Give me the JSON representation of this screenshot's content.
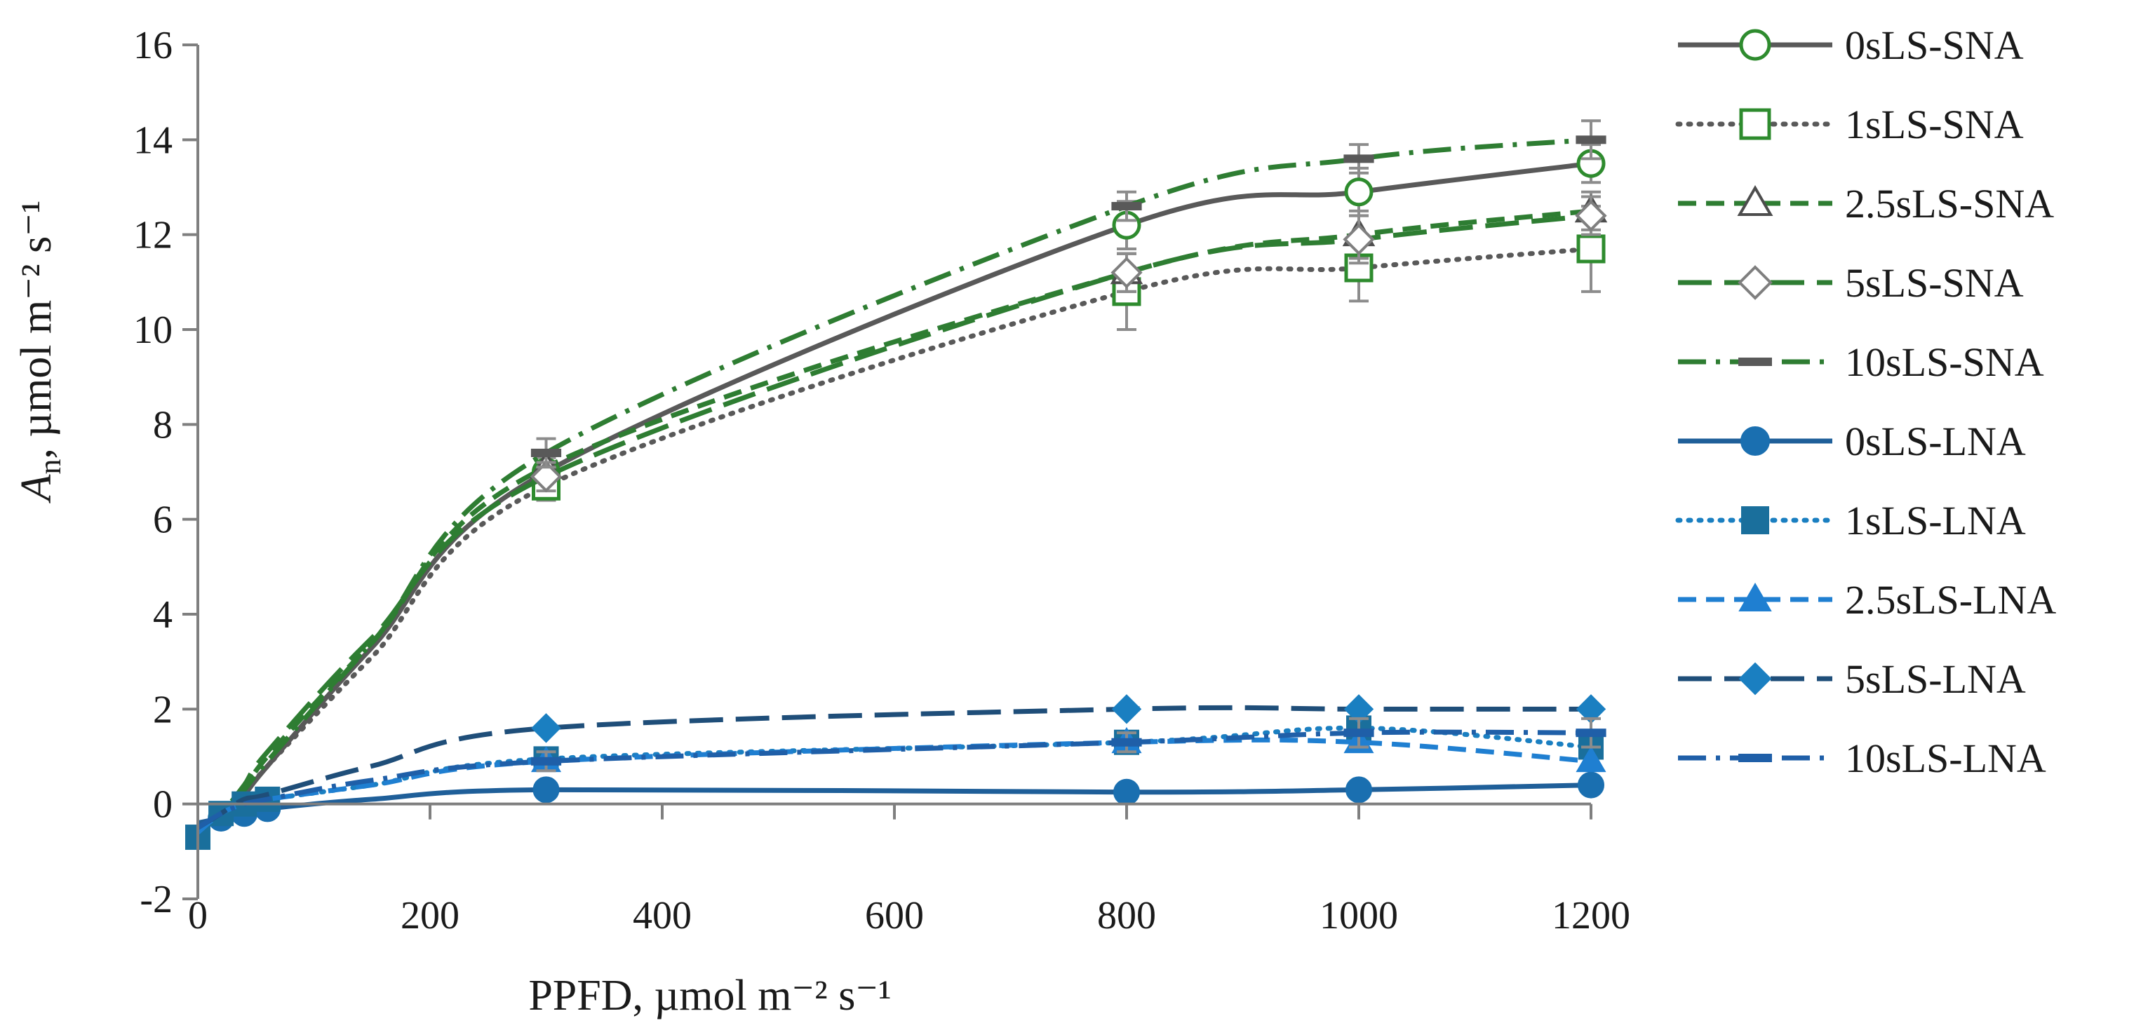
{
  "chart_data": {
    "type": "line",
    "title": "",
    "xlabel": "PPFD, µmol m⁻² s⁻¹",
    "ylabel_main": "A",
    "ylabel_sub": "n",
    "ylabel_rest": ", µmol m⁻² s⁻¹",
    "xlim": [
      0,
      1200
    ],
    "ylim": [
      -2,
      16
    ],
    "xticks": [
      0,
      200,
      400,
      600,
      800,
      1000,
      1200
    ],
    "yticks": [
      -2,
      0,
      2,
      4,
      6,
      8,
      10,
      12,
      14,
      16
    ],
    "x": [
      0,
      20,
      40,
      60,
      150,
      300,
      800,
      1000,
      1200
    ],
    "grid": false,
    "legend_position": "right",
    "series": [
      {
        "name": "0sLS-SNA",
        "values": [
          -0.6,
          -0.2,
          0.2,
          0.8,
          3.3,
          7.0,
          12.2,
          12.9,
          13.5
        ],
        "errors": [
          0,
          0,
          0,
          0,
          0,
          0.3,
          0.5,
          0.5,
          0.4
        ],
        "color": "#595959",
        "dash": "solid",
        "marker": "circle-open",
        "marker_color": "#2e8b2e",
        "markers_at": [
          300,
          800,
          1000,
          1200
        ]
      },
      {
        "name": "1sLS-SNA",
        "values": [
          -0.6,
          -0.2,
          0.2,
          0.8,
          3.1,
          6.7,
          10.8,
          11.3,
          11.7
        ],
        "errors": [
          0,
          0,
          0,
          0,
          0,
          0.3,
          0.8,
          0.7,
          0.9
        ],
        "color": "#595959",
        "dash": "dotted",
        "marker": "square-open",
        "marker_color": "#2e8b2e",
        "markers_at": [
          300,
          800,
          1000,
          1200
        ]
      },
      {
        "name": "2.5sLS-SNA",
        "values": [
          -0.6,
          -0.2,
          0.3,
          1.0,
          3.4,
          7.1,
          11.2,
          12.0,
          12.5
        ],
        "errors": [
          0,
          0,
          0,
          0,
          0,
          0.3,
          0.4,
          0.5,
          0.4
        ],
        "color": "#2e7d32",
        "dash": "dashed",
        "marker": "triangle-open",
        "marker_color": "#4d4d4d",
        "markers_at": [
          300,
          800,
          1000,
          1200
        ]
      },
      {
        "name": "5sLS-SNA",
        "values": [
          -0.6,
          -0.2,
          0.4,
          1.1,
          3.5,
          6.9,
          11.2,
          11.9,
          12.4
        ],
        "errors": [
          0,
          0,
          0,
          0,
          0,
          0.3,
          0.4,
          0.5,
          0.4
        ],
        "color": "#2e7d32",
        "dash": "longdash",
        "marker": "diamond-open",
        "marker_color": "#7f7f7f",
        "markers_at": [
          300,
          800,
          1000,
          1200
        ]
      },
      {
        "name": "10sLS-SNA",
        "values": [
          -0.6,
          -0.2,
          0.3,
          0.9,
          3.4,
          7.4,
          12.6,
          13.6,
          14.0
        ],
        "errors": [
          0,
          0,
          0,
          0,
          0,
          0.3,
          0.3,
          0.3,
          0.4
        ],
        "color": "#2e7d32",
        "dash": "dashdot",
        "marker": "dash",
        "marker_color": "#595959",
        "markers_at": [
          300,
          800,
          1000,
          1200
        ]
      },
      {
        "name": "0sLS-LNA",
        "values": [
          -0.4,
          -0.3,
          -0.2,
          -0.1,
          0.1,
          0.3,
          0.25,
          0.3,
          0.4
        ],
        "errors": [
          0,
          0,
          0,
          0,
          0,
          0,
          0,
          0,
          0
        ],
        "color": "#1f5f99",
        "dash": "solid",
        "marker": "circle-filled",
        "marker_color": "#1a6fb0",
        "markers_at": [
          20,
          40,
          60,
          300,
          800,
          1000,
          1200
        ]
      },
      {
        "name": "1sLS-LNA",
        "values": [
          -0.7,
          -0.2,
          0.0,
          0.1,
          0.4,
          0.95,
          1.3,
          1.6,
          1.2
        ],
        "errors": [
          0,
          0,
          0,
          0,
          0,
          0,
          0,
          0,
          0
        ],
        "color": "#1a7fc1",
        "dash": "dotted",
        "marker": "square-filled",
        "marker_color": "#1a6f9c",
        "markers_at": [
          0,
          20,
          40,
          60,
          300,
          800,
          1000,
          1200
        ]
      },
      {
        "name": "2.5sLS-LNA",
        "values": [
          -0.6,
          -0.2,
          0.0,
          0.1,
          0.4,
          0.9,
          1.3,
          1.3,
          0.9
        ],
        "errors": [
          0,
          0,
          0,
          0,
          0,
          0,
          0,
          0,
          0
        ],
        "color": "#1f7fd1",
        "dash": "dashed",
        "marker": "triangle-filled",
        "marker_color": "#1f7fd1",
        "markers_at": [
          300,
          800,
          1000,
          1200
        ]
      },
      {
        "name": "5sLS-LNA",
        "values": [
          -0.5,
          -0.2,
          0.1,
          0.2,
          0.8,
          1.6,
          2.0,
          2.0,
          2.0
        ],
        "errors": [
          0,
          0,
          0,
          0,
          0,
          0,
          0,
          0,
          0
        ],
        "color": "#1f4e79",
        "dash": "longdash",
        "marker": "diamond-filled",
        "marker_color": "#1a7fc1",
        "markers_at": [
          300,
          800,
          1000,
          1200
        ]
      },
      {
        "name": "10sLS-LNA",
        "values": [
          -0.5,
          -0.2,
          0.0,
          0.1,
          0.5,
          0.9,
          1.3,
          1.5,
          1.5
        ],
        "errors": [
          0,
          0,
          0,
          0,
          0,
          0.2,
          0.2,
          0.3,
          0.3
        ],
        "color": "#1f5fa8",
        "dash": "dashdot",
        "marker": "dash",
        "marker_color": "#1f5fa8",
        "markers_at": [
          300,
          800,
          1000,
          1200
        ]
      }
    ]
  }
}
